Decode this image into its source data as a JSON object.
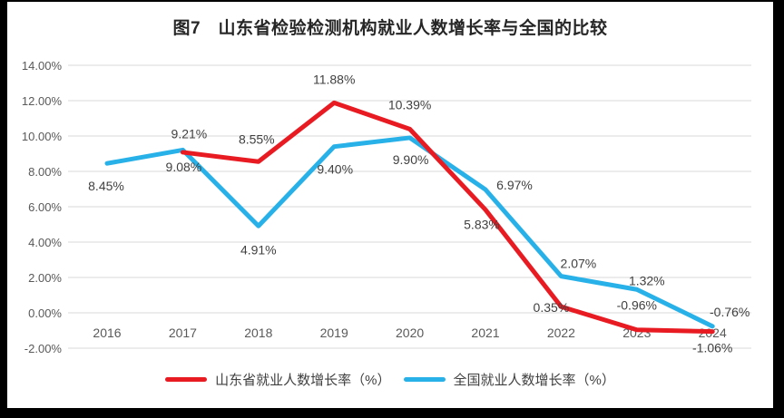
{
  "title": "图7　山东省检验检测机构就业人数增长率与全国的比较",
  "chart_data": {
    "type": "line",
    "categories": [
      "2016",
      "2017",
      "2018",
      "2019",
      "2020",
      "2021",
      "2022",
      "2023",
      "2024"
    ],
    "series": [
      {
        "name": "山东省就业人数增长率（%）",
        "color": "#e81b23",
        "values": [
          null,
          9.08,
          8.55,
          11.88,
          10.39,
          5.83,
          0.35,
          -0.96,
          -1.06
        ]
      },
      {
        "name": "全国就业人数增长率（%）",
        "color": "#27b1e8",
        "values": [
          8.45,
          9.21,
          4.91,
          9.4,
          9.9,
          6.97,
          2.07,
          1.32,
          -0.76
        ]
      }
    ],
    "xlabel": "",
    "ylabel": "",
    "ylim": [
      -2,
      14
    ],
    "y_step": 2,
    "y_tick_format": "0.00%",
    "value_label_format": "0.00%",
    "grid": true,
    "legend_position": "bottom",
    "layout_hints": {
      "label_offsets": [
        [
          null,
          [
            1,
            16
          ],
          [
            -2,
            -25
          ],
          [
            0,
            -26
          ],
          [
            0,
            -27
          ],
          [
            -4,
            16
          ],
          [
            -11,
            1
          ],
          [
            0,
            -27
          ],
          [
            0,
            18
          ]
        ],
        [
          [
            -1,
            25
          ],
          [
            7,
            -18
          ],
          [
            0,
            26
          ],
          [
            1,
            25
          ],
          [
            1,
            24
          ],
          [
            32,
            -5
          ],
          [
            19,
            -14
          ],
          [
            11,
            -10
          ],
          [
            19,
            -16
          ]
        ]
      ],
      "colors": {
        "gridline": "#d9d9d9",
        "axis_text": "#595959",
        "data_label": "#404040",
        "title_text": "#262626",
        "frame": "#000000",
        "background": "#ffffff"
      }
    }
  }
}
